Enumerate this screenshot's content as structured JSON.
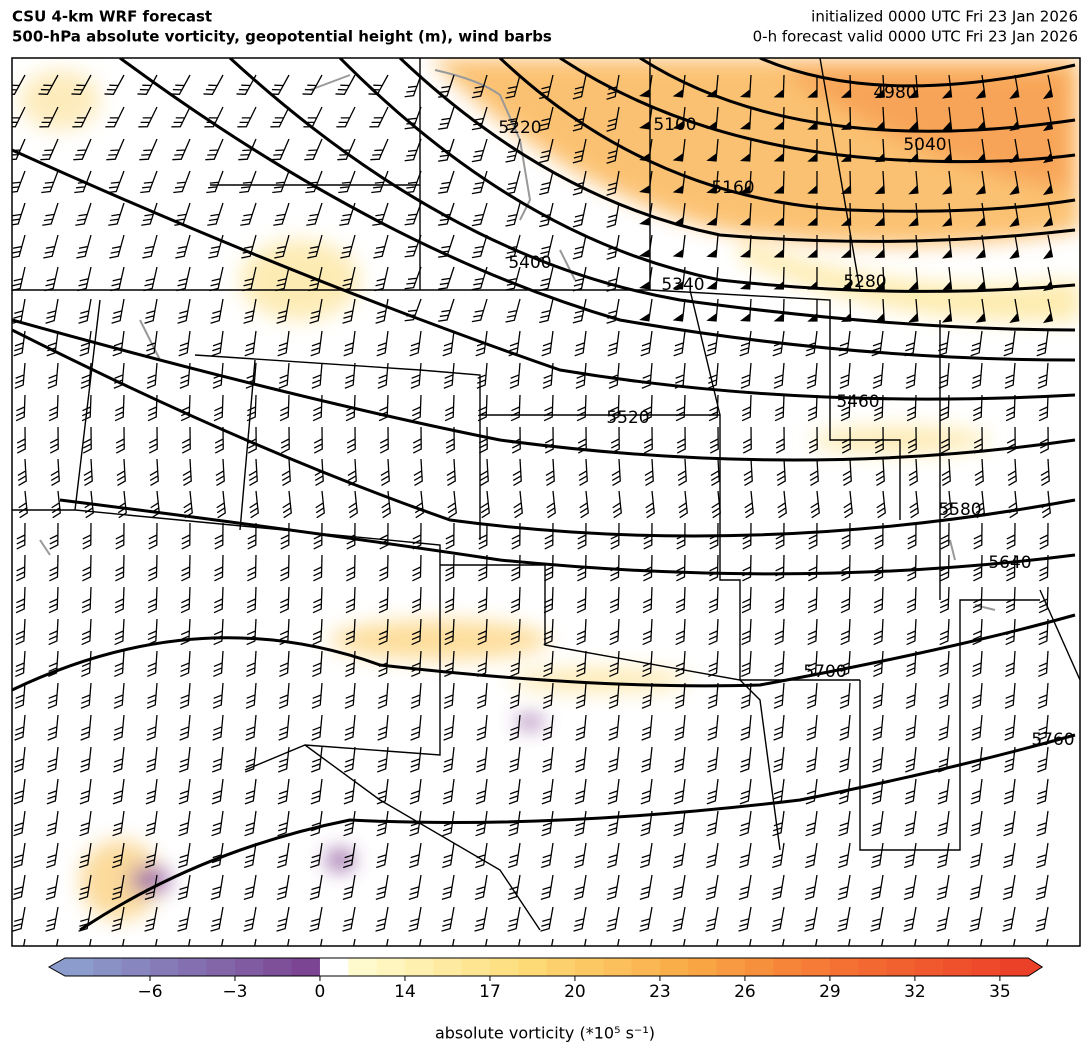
{
  "header": {
    "title_left": [
      "CSU 4-km WRF forecast",
      "500-hPa absolute vorticity, geopotential height (m), wind barbs"
    ],
    "title_right": [
      "initialized 0000 UTC Fri 23 Jan 2026",
      "0-h forecast valid 0000 UTC Fri 23 Jan 2026"
    ]
  },
  "contour_labels": [
    4980,
    5040,
    5100,
    5160,
    5220,
    5280,
    5340,
    5400,
    5460,
    5520,
    5580,
    5640,
    5700,
    5760
  ],
  "colorbar": {
    "label": "absolute vorticity (*10⁵ s⁻¹)",
    "levels": [
      -9,
      -8,
      -7,
      -6,
      -5,
      -4,
      -3,
      -2,
      -1,
      0,
      12,
      13,
      14,
      15,
      16,
      17,
      18,
      19,
      20,
      21,
      22,
      23,
      24,
      25,
      26,
      27,
      28,
      29,
      30,
      31,
      32,
      33,
      34,
      35,
      36
    ],
    "ticks": [
      {
        "value": -6,
        "label": "−6"
      },
      {
        "value": -3,
        "label": "−3"
      },
      0,
      14,
      17,
      20,
      23,
      26,
      29,
      32,
      35
    ]
  }
}
